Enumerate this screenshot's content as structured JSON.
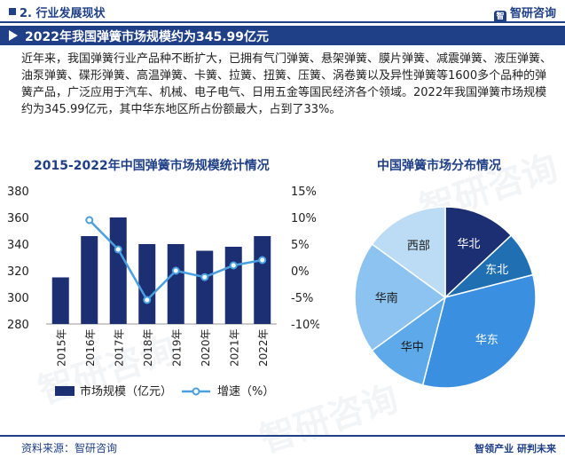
{
  "header": {
    "section": "2. 行业发展现状",
    "logo_text": "智研咨询",
    "logo_mark": "智"
  },
  "banner": {
    "title": "2022年我国弹簧市场规模约为345.99亿元"
  },
  "paragraph": "近年来，我国弹簧行业产品种不断扩大，已拥有气门弹簧、悬架弹簧、膜片弹簧、减震弹簧、液压弹簧、油泵弹簧、碟形弹簧、高温弹簧、卡簧、拉簧、扭簧、压簧、涡卷簧以及异性弹簧等1600多个品种的弹簧产品，广泛应用于汽车、机械、电子电气、日用五金等国民经济各个领域。2022年我国弹簧市场规模约为345.99亿元，其中华东地区所占份额最大，占到了33%。",
  "watermark": "智研咨询",
  "footer": {
    "source": "资料来源：智研咨询",
    "logo_text": "智领产业 研判未来"
  },
  "colors": {
    "navy": "#1f3f86",
    "bar": "#1b2f72",
    "line": "#4a9fe0"
  },
  "chart_data": [
    {
      "type": "bar",
      "title": "2015-2022年中国弹簧市场规模统计情况",
      "categories": [
        "2015年",
        "2016年",
        "2017年",
        "2018年",
        "2019年",
        "2020年",
        "2021年",
        "2022年"
      ],
      "series": [
        {
          "name": "市场规模（亿元）",
          "type": "bar",
          "axis": "left",
          "values": [
            315,
            346,
            360,
            340,
            340,
            335,
            338,
            346
          ]
        },
        {
          "name": "增速（%）",
          "type": "line",
          "axis": "right",
          "values": [
            null,
            9.5,
            4,
            -5.5,
            0,
            -1.2,
            1,
            2
          ]
        }
      ],
      "ylim_left": [
        280,
        380
      ],
      "yticks_left": [
        "380",
        "360",
        "340",
        "320",
        "300",
        "280"
      ],
      "ylim_right": [
        -10,
        15
      ],
      "yticks_right": [
        "15%",
        "10%",
        "5%",
        "0%",
        "-5%",
        "-10%"
      ],
      "legend": "bottom",
      "grid": false
    },
    {
      "type": "pie",
      "title": "中国弹簧市场分布情况",
      "labels": [
        "华北",
        "东北",
        "华东",
        "华中",
        "华南",
        "西部"
      ],
      "values": [
        13,
        8,
        33,
        11,
        20,
        15
      ],
      "colors": [
        "#1b2f72",
        "#1f6fb2",
        "#3a8fe0",
        "#5ea9ea",
        "#8cc3f0",
        "#bcdcf5"
      ]
    }
  ]
}
